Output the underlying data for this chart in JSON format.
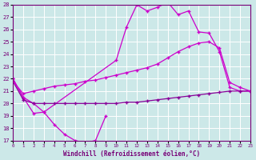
{
  "xlabel": "Windchill (Refroidissement éolien,°C)",
  "xlim": [
    0,
    23
  ],
  "ylim": [
    17,
    28
  ],
  "yticks": [
    17,
    18,
    19,
    20,
    21,
    22,
    23,
    24,
    25,
    26,
    27,
    28
  ],
  "xticks": [
    0,
    1,
    2,
    3,
    4,
    5,
    6,
    7,
    8,
    9,
    10,
    11,
    12,
    13,
    14,
    15,
    16,
    17,
    18,
    19,
    20,
    21,
    22,
    23
  ],
  "bg_color": "#cce8e8",
  "grid_color": "#b0d4d4",
  "line_color_bright": "#cc00cc",
  "line_color_dark": "#880099",
  "line1_x": [
    0,
    1,
    2,
    3,
    4,
    5,
    6,
    7,
    8,
    9
  ],
  "line1_y": [
    22.0,
    20.5,
    19.2,
    19.3,
    18.3,
    17.5,
    17.0,
    16.8,
    17.0,
    19.0
  ],
  "line2_x": [
    0,
    1,
    2,
    3,
    10,
    11,
    12,
    13,
    14,
    15,
    16,
    17,
    18,
    19,
    20,
    21,
    22,
    23
  ],
  "line2_y": [
    22.0,
    20.5,
    20.0,
    19.3,
    23.5,
    26.2,
    28.0,
    27.5,
    27.8,
    28.2,
    27.2,
    27.5,
    25.8,
    25.7,
    24.2,
    21.3,
    21.0,
    21.0
  ],
  "line3_x": [
    0,
    1,
    2,
    3,
    4,
    5,
    6,
    7,
    8,
    9,
    10,
    11,
    12,
    13,
    14,
    15,
    16,
    17,
    18,
    19,
    20,
    21,
    22,
    23
  ],
  "line3_y": [
    21.8,
    20.3,
    20.0,
    20.0,
    20.0,
    20.0,
    20.0,
    20.0,
    20.0,
    20.0,
    20.0,
    20.1,
    20.1,
    20.2,
    20.3,
    20.4,
    20.5,
    20.6,
    20.7,
    20.8,
    20.9,
    21.0,
    21.0,
    21.0
  ],
  "line4_x": [
    0,
    1,
    2,
    3,
    4,
    5,
    6,
    7,
    8,
    9,
    10,
    11,
    12,
    13,
    14,
    15,
    16,
    17,
    18,
    19,
    20,
    21,
    22,
    23
  ],
  "line4_y": [
    21.8,
    20.8,
    21.0,
    21.2,
    21.4,
    21.5,
    21.6,
    21.8,
    21.9,
    22.1,
    22.3,
    22.5,
    22.7,
    22.9,
    23.2,
    23.7,
    24.2,
    24.6,
    24.9,
    25.0,
    24.5,
    21.7,
    21.3,
    21.0
  ]
}
